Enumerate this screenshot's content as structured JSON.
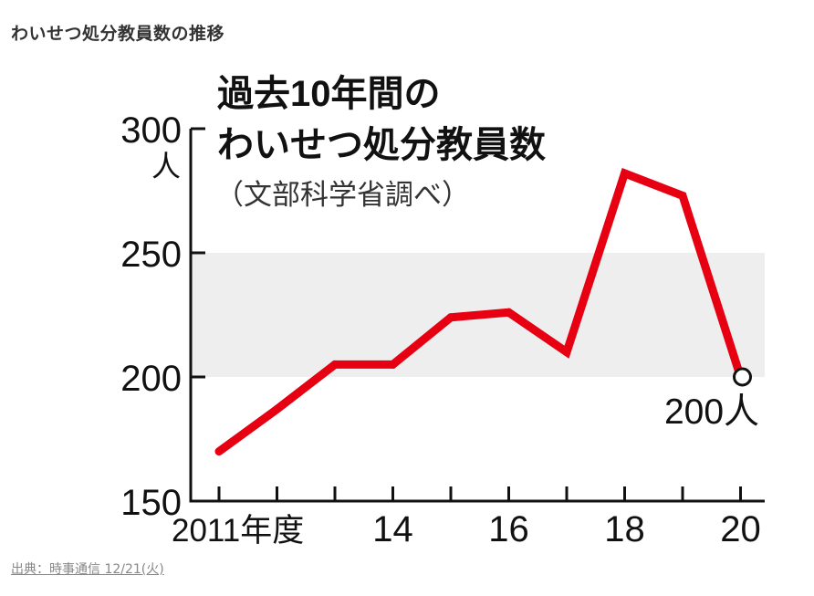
{
  "page": {
    "heading": "わいせつ処分教員数の推移",
    "source": "出典：時事通信 12/21(火)"
  },
  "chart_data": {
    "type": "line",
    "title_line1": "過去10年間の",
    "title_line2": "わいせつ処分教員数",
    "subtitle": "（文部科学省調べ）",
    "ylabel": "人",
    "x": [
      2011,
      2012,
      2013,
      2014,
      2015,
      2016,
      2017,
      2018,
      2019,
      2020
    ],
    "values": [
      170,
      187,
      205,
      205,
      224,
      226,
      210,
      282,
      273,
      200
    ],
    "ylim": [
      150,
      300
    ],
    "y_ticks": [
      "150",
      "200",
      "250",
      "300"
    ],
    "x_tick_labels": [
      "2011年度",
      "14",
      "16",
      "18",
      "20"
    ],
    "shaded_band": [
      200,
      250
    ],
    "end_annotation": "200人",
    "line_color": "#e60012",
    "band_color": "#eeeeee",
    "grid": false
  }
}
